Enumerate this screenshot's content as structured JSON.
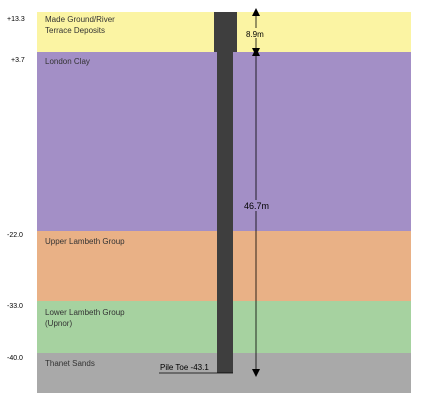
{
  "strata": [
    {
      "name_line1": "Made Ground/River",
      "name_line2": "Terrace Deposits",
      "top_level": "+13.3",
      "color": "#fbf4a3"
    },
    {
      "name_line1": "London Clay",
      "name_line2": "",
      "top_level": "+3.7",
      "color": "#a38fc6"
    },
    {
      "name_line1": "Upper Lambeth Group",
      "name_line2": "",
      "top_level": "-22.0",
      "color": "#e9b186"
    },
    {
      "name_line1": "Lower Lambeth Group",
      "name_line2": "(Upnor)",
      "top_level": "-33.0",
      "color": "#a6d2a0"
    },
    {
      "name_line1": "Thanet Sands",
      "name_line2": "",
      "top_level": "-40.0",
      "color": "#a9a9a9"
    }
  ],
  "pile": {
    "toe_label": "Pile Toe -43.1",
    "color": "#3e3e3e"
  },
  "dimensions": [
    {
      "label": "8.9m"
    },
    {
      "label": "46.7m"
    }
  ]
}
